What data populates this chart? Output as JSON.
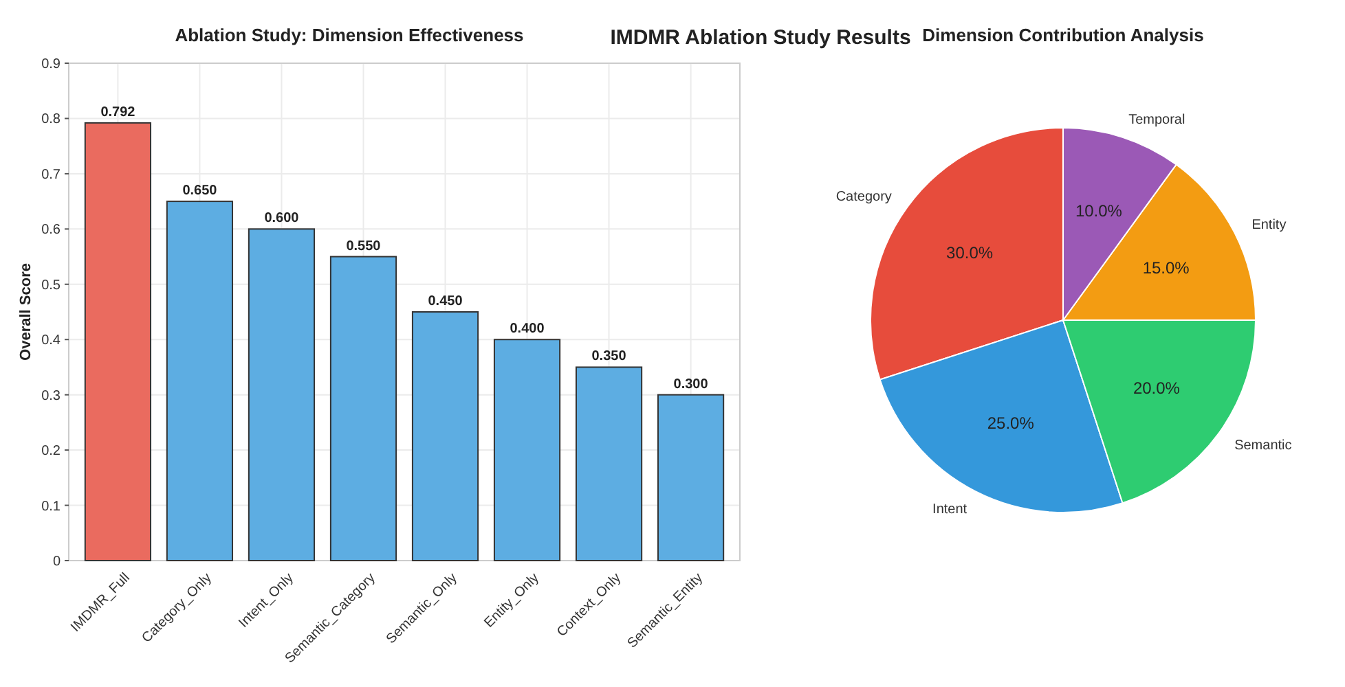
{
  "chart_data": [
    {
      "type": "other",
      "title": "IMDMR Ablation Study Results"
    },
    {
      "type": "bar",
      "title": "Ablation Study: Dimension Effectiveness",
      "ylabel": "Overall Score",
      "categories": [
        "IMDMR_Full",
        "Category_Only",
        "Intent_Only",
        "Semantic_Category",
        "Semantic_Only",
        "Entity_Only",
        "Context_Only",
        "Semantic_Entity"
      ],
      "values": [
        0.792,
        0.65,
        0.6,
        0.55,
        0.45,
        0.4,
        0.35,
        0.3
      ],
      "colors": [
        "#ea6b5f",
        "#5dade2",
        "#5dade2",
        "#5dade2",
        "#5dade2",
        "#5dade2",
        "#5dade2",
        "#5dade2"
      ],
      "value_labels": [
        "0.792",
        "0.650",
        "0.600",
        "0.550",
        "0.450",
        "0.400",
        "0.350",
        "0.300"
      ],
      "ylim": [
        0,
        0.9
      ],
      "yticks": [
        0,
        0.1,
        0.2,
        0.3,
        0.4,
        0.5,
        0.6,
        0.7,
        0.8,
        0.9
      ],
      "grid": true
    },
    {
      "type": "pie",
      "title": "Dimension Contribution Analysis",
      "categories": [
        "Category",
        "Intent",
        "Semantic",
        "Entity",
        "Temporal"
      ],
      "values": [
        30,
        25,
        20,
        15,
        10
      ],
      "colors": [
        "#e74c3c",
        "#3498db",
        "#2ecc71",
        "#f39c12",
        "#9b59b6"
      ],
      "value_labels": [
        "30.0%",
        "25.0%",
        "20.0%",
        "15.0%",
        "10.0%"
      ]
    }
  ]
}
